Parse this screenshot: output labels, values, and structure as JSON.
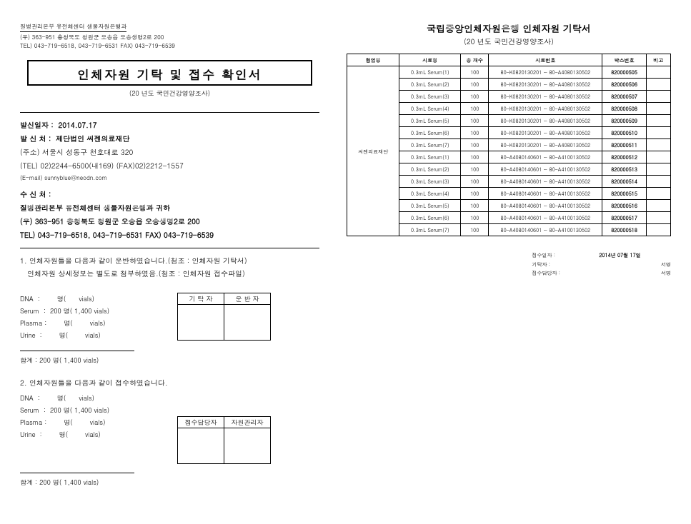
{
  "left": {
    "header_org": "질병관리본부 유전체센터 생물자원은행과",
    "header_addr": "(우) 363-951 충청북도 청원군 오송읍 오송생명2로 200",
    "header_tel": "TEL) 043-719-6518, 043-719-6531 FAX) 043-719-6539",
    "title": "인체자원 기탁 및 접수 확인서",
    "title_sub": "(20    년도 국민건강영양조사)",
    "send_date_label": "발신일자 :",
    "send_date": "2014.07.17",
    "sender_label": "발 신 처 :",
    "sender": "제단법인 씨젠의료재단",
    "sender_addr": "(주소) 서울시 성동구 천호대로 320",
    "sender_tel": "(TEL)  02)2244-6500(내169)   (FAX)02)2212-1557",
    "sender_email": "(E-mail) sunnyblue@neodn.com",
    "recv_label": "수 신 처 :",
    "recv_org": "질병관리본부 유전체센터 생물자원은행과 귀하",
    "recv_addr": "(우) 363-951   충청북도 청원군 오송읍 오송생명2로 200",
    "recv_tel": "TEL) 043-719-6518, 043-719-6531 FAX) 043-719-6539",
    "item1_text1": "1. 인체자원들을 다음과 같이 운반하였습니다.(첨조 : 인체자원 기탁서)",
    "item1_text2": "   인체자원 상세정보는 별도로 첨부하였음.(첨조 : 인체자원 접수파일)",
    "item2_text": "2. 인체자원들을 다음과 같이 접수하였습니다.",
    "samples": {
      "dna": "DNA  :        명(      vials)",
      "serum": "Serum  :  200 명( 1,400 vials)",
      "plasma": "Plasma :        명(        vials)",
      "urine": "Urine  :        명(        vials)"
    },
    "total": "합계 :   200  명( 1,400 vials)",
    "sig1": {
      "a": "기 탁 자",
      "b": "운 반 자"
    },
    "sig2": {
      "a": "접수담당자",
      "b": "자원관리자"
    }
  },
  "right": {
    "title": "국립중앙인체자원은행 인체자원 기탁서",
    "subtitle": "(20     년도 국민건강영양조사)",
    "headers": [
      "협업명",
      "시료형",
      "총 개수",
      "시료번호",
      "박스번호",
      "비고"
    ],
    "org_cell": "씨젠의료재단",
    "rows": [
      {
        "t": "0.3mL Serum(1)",
        "c": "100",
        "r": "80-K0820130201 ~ 80-A4080130502",
        "b": "820000505"
      },
      {
        "t": "0.3mL Serum(2)",
        "c": "100",
        "r": "80-K0820130201 ~ 80-A4080130502",
        "b": "820000506"
      },
      {
        "t": "0.3mL Serum(3)",
        "c": "100",
        "r": "80-K0820130201 ~ 80-A4080130502",
        "b": "820000507"
      },
      {
        "t": "0.3mL Serum(4)",
        "c": "100",
        "r": "80-K0820130201 ~ 80-A4080130502",
        "b": "820000508"
      },
      {
        "t": "0.3mL Serum(5)",
        "c": "100",
        "r": "80-K0820130201 ~ 80-A4080130502",
        "b": "820000509"
      },
      {
        "t": "0.3mL Serum(6)",
        "c": "100",
        "r": "80-K0820130201 ~ 80-A4080130502",
        "b": "820000510"
      },
      {
        "t": "0.3mL Serum(7)",
        "c": "100",
        "r": "80-K0820130201 ~ 80-A4080130502",
        "b": "820000511"
      },
      {
        "t": "0.3mL Serum(1)",
        "c": "100",
        "r": "80-A4080140601 ~ 80-A4100130502",
        "b": "820000512"
      },
      {
        "t": "0.3mL Serum(2)",
        "c": "100",
        "r": "80-A4080140601 ~ 80-A4100130502",
        "b": "820000513"
      },
      {
        "t": "0.3mL Serum(3)",
        "c": "100",
        "r": "80-A4080140601 ~ 80-A4100130502",
        "b": "820000514"
      },
      {
        "t": "0.3mL Serum(4)",
        "c": "100",
        "r": "80-A4080140601 ~ 80-A4100130502",
        "b": "820000515"
      },
      {
        "t": "0.3mL Serum(5)",
        "c": "100",
        "r": "80-A4080140601 ~ 80-A4100130502",
        "b": "820000516"
      },
      {
        "t": "0.3mL Serum(6)",
        "c": "100",
        "r": "80-A4080140601 ~ 80-A4100130502",
        "b": "820000517"
      },
      {
        "t": "0.3mL Serum(7)",
        "c": "100",
        "r": "80-A4080140601 ~ 80-A4100130502",
        "b": "820000518"
      }
    ],
    "sign": {
      "date_label": "접수일자 :",
      "date_val": "2014년 07월 17일",
      "consignor_label": "기탁자 :",
      "consignor_sig": "서명",
      "receiver_label": "접수담당자 :",
      "receiver_sig": "서명"
    }
  }
}
